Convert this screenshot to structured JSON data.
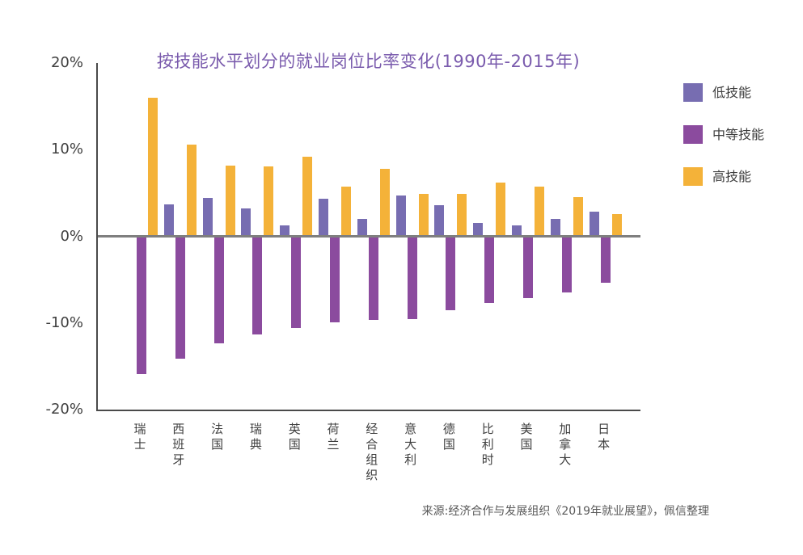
{
  "chart": {
    "title": "按技能水平划分的就业岗位比率变化(1990年-2015年)",
    "source": "来源:经济合作与发展组织《2019年就业展望》，佩信整理",
    "title_color": "#7a5bad",
    "axis_color": "#4a4a4a",
    "zero_line_color": "#7f7f7f",
    "tick_text_color": "#3f3f3f"
  },
  "legend": {
    "position": "right",
    "items": [
      {
        "label": "低技能",
        "color": "#776db1"
      },
      {
        "label": "中等技能",
        "color": "#8b4b9e"
      },
      {
        "label": "高技能",
        "color": "#f4b239"
      }
    ]
  },
  "chart_data": {
    "type": "bar",
    "title": "按技能水平划分的就业岗位比率变化(1990年-2015年)",
    "xlabel": "",
    "ylabel": "",
    "ylim": [
      -20,
      20
    ],
    "y_ticks": [
      "20%",
      "10%",
      "0%",
      "-10%",
      "-20%"
    ],
    "y_tick_values": [
      20,
      10,
      0,
      -10,
      -20
    ],
    "grid": false,
    "legend_position": "right",
    "categories": [
      "瑞士",
      "西班牙",
      "法国",
      "瑞典",
      "英国",
      "荷兰",
      "经合组织",
      "意大利",
      "德国",
      "比利时",
      "美国",
      "加拿大",
      "日本"
    ],
    "series": [
      {
        "name": "低技能",
        "color": "#776db1",
        "values": [
          0,
          3.7,
          4.4,
          3.2,
          1.3,
          4.3,
          2.0,
          4.7,
          3.6,
          1.5,
          1.3,
          2.0,
          2.8
        ]
      },
      {
        "name": "中等技能",
        "color": "#8b4b9e",
        "values": [
          -15.7,
          -13.9,
          -12.2,
          -11.1,
          -10.4,
          -9.7,
          -9.5,
          -9.4,
          -8.3,
          -7.5,
          -6.9,
          -6.3,
          -5.2
        ]
      },
      {
        "name": "高技能",
        "color": "#f4b239",
        "values": [
          16.0,
          10.6,
          8.2,
          8.1,
          9.2,
          5.7,
          7.8,
          4.9,
          4.9,
          6.2,
          5.7,
          4.5,
          2.6
        ]
      }
    ]
  }
}
